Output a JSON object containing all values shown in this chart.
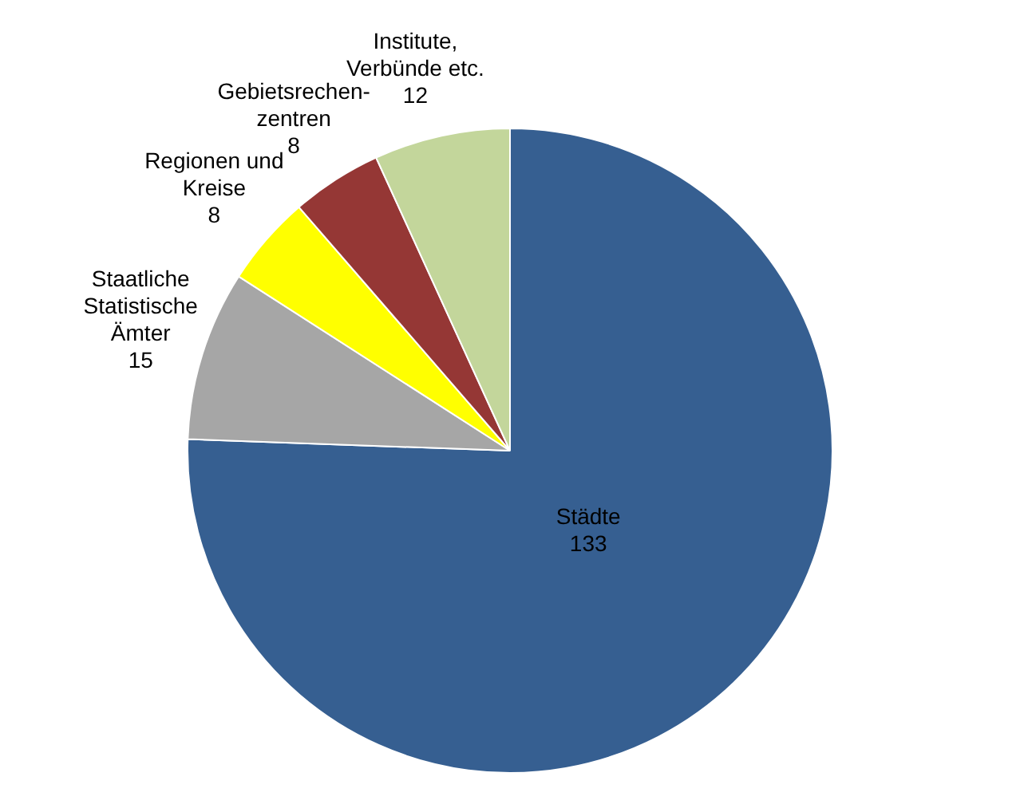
{
  "chart_data": {
    "type": "pie",
    "categories": [
      "Städte",
      "Staatliche Statistische Ämter",
      "Regionen und Kreise",
      "Gebietsrechen-zentren",
      "Institute, Verbünde etc."
    ],
    "values": [
      133,
      15,
      8,
      8,
      12
    ],
    "colors": [
      "#365f91",
      "#a6a6a6",
      "#ffff00",
      "#953735",
      "#c3d69b"
    ],
    "data_labels": true,
    "legend": false
  }
}
